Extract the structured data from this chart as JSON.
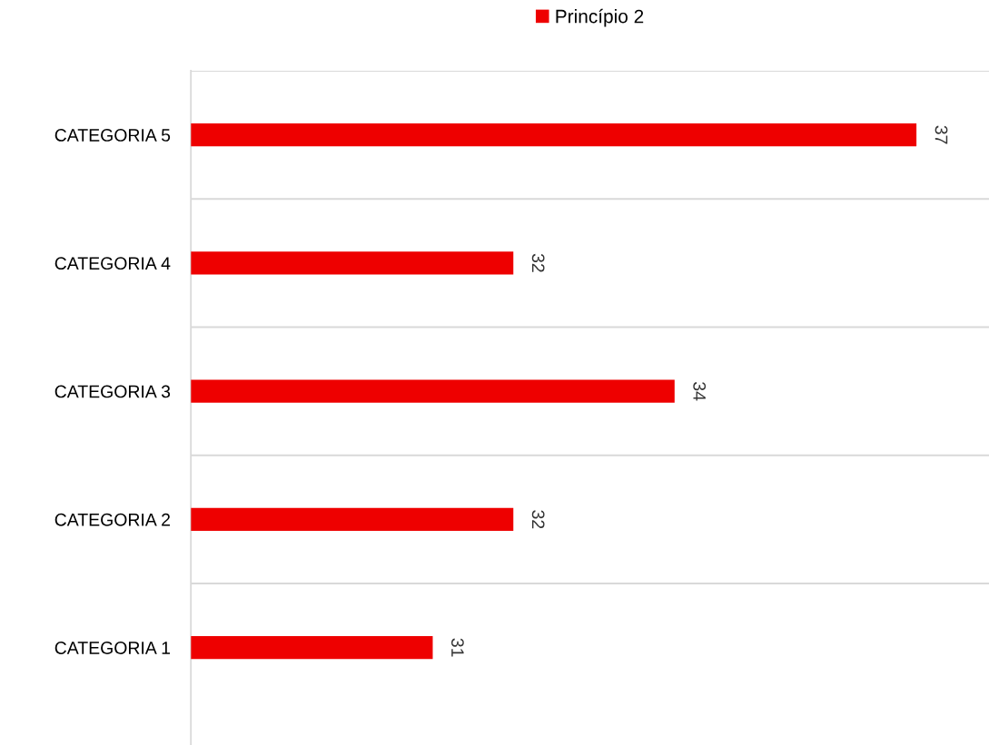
{
  "chart_data": {
    "type": "bar",
    "orientation": "horizontal",
    "categories": [
      "CATEGORIA 5",
      "CATEGORIA 4",
      "CATEGORIA 3",
      "CATEGORIA 2",
      "CATEGORIA 1"
    ],
    "series": [
      {
        "name": "Princípio 2",
        "color": "#ee0000",
        "values": [
          37,
          32,
          34,
          32,
          31
        ]
      }
    ],
    "xlim": [
      28,
      37.9
    ],
    "tick_labels": "y",
    "data_labels": true,
    "grid": "y",
    "legend": "top"
  }
}
